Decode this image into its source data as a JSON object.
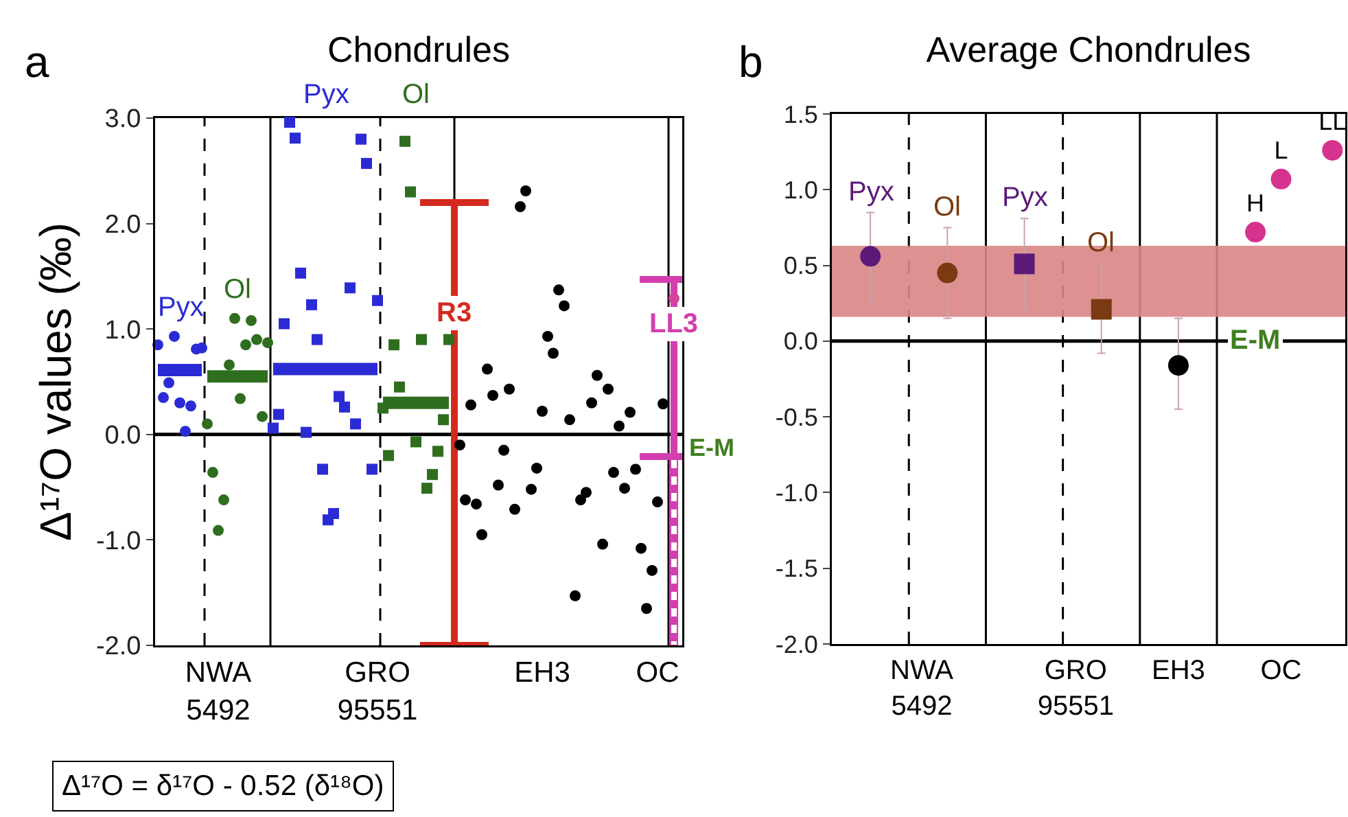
{
  "chart_data": [
    {
      "type": "scatter",
      "title": "Chondrules",
      "ylabel": "Δ¹⁷O values (‰)",
      "annotations": [
        "a",
        "Δ¹⁷O = δ¹⁷O - 0.52 (δ¹⁸O)"
      ],
      "categories": [
        null,
        null,
        null,
        null,
        null,
        null,
        null,
        null,
        null,
        null,
        null,
        "NWA\n5492",
        null,
        null,
        null,
        null,
        null,
        null,
        null,
        null,
        null,
        null,
        null,
        null,
        null,
        null,
        null,
        null,
        null,
        null,
        null,
        null,
        null,
        null,
        null,
        null,
        null,
        null,
        null,
        null,
        "GRO\n95551",
        null,
        null,
        null,
        null,
        null,
        null,
        null,
        null,
        null,
        null,
        null,
        null,
        null,
        null,
        null,
        null,
        null,
        null,
        null,
        null,
        null,
        null,
        null,
        null,
        null,
        null,
        null,
        null,
        null,
        "EH3",
        null,
        null,
        null,
        null,
        null,
        null,
        null,
        null,
        null,
        null,
        null,
        null,
        null,
        null,
        null,
        null,
        null,
        null,
        null,
        null,
        "OC",
        null,
        null,
        null,
        null
      ],
      "ylim": [
        -2.0,
        3.0
      ],
      "yticks": [
        {
          "value": -2,
          "label": "-2.0"
        },
        {
          "value": -1,
          "label": "-1.0"
        },
        {
          "value": 0,
          "label": "0.0"
        },
        {
          "value": 1,
          "label": "1.0"
        },
        {
          "value": 2,
          "label": "2.0"
        },
        {
          "value": 3,
          "label": "3.0"
        }
      ],
      "series": [
        {
          "name": "Pyx",
          "color": "#2b2bd6",
          "marker": "circle",
          "values": [
            0.85,
            0.35,
            0.49,
            0.93,
            0.3,
            0.03,
            0.27,
            0.81,
            0.82,
            null,
            null,
            null,
            null,
            null,
            null,
            null,
            null,
            null,
            null,
            null,
            null,
            null,
            null,
            null,
            null,
            null,
            null,
            null,
            null,
            null,
            null,
            null,
            null,
            null,
            null,
            null,
            null,
            null,
            null,
            null,
            null,
            null,
            null,
            null,
            null,
            null,
            null,
            null,
            null,
            null,
            null,
            null,
            null,
            null,
            null,
            null,
            null,
            null,
            null,
            null,
            null,
            null,
            null,
            null,
            null,
            null,
            null,
            null,
            null,
            null,
            null,
            null,
            null,
            null,
            null,
            null,
            null,
            null,
            null,
            null,
            null,
            null,
            null,
            null,
            null,
            null,
            null,
            null,
            null,
            null,
            null,
            null,
            null,
            null,
            null,
            null
          ]
        },
        {
          "name": "Ol",
          "color": "#2f6e1f",
          "marker": "circle",
          "values": [
            null,
            null,
            null,
            null,
            null,
            null,
            null,
            null,
            null,
            0.1,
            -0.36,
            -0.91,
            -0.62,
            0.66,
            1.1,
            0.34,
            0.85,
            1.08,
            0.9,
            0.17,
            0.87,
            null,
            null,
            null,
            null,
            null,
            null,
            null,
            null,
            null,
            null,
            null,
            null,
            null,
            null,
            null,
            null,
            null,
            null,
            null,
            null,
            null,
            null,
            null,
            null,
            null,
            null,
            null,
            null,
            null,
            null,
            null,
            null,
            null,
            null,
            null,
            null,
            null,
            null,
            null,
            null,
            null,
            null,
            null,
            null,
            null,
            null,
            null,
            null,
            null,
            null,
            null,
            null,
            null,
            null,
            null,
            null,
            null,
            null,
            null,
            null,
            null,
            null,
            null,
            null,
            null,
            null,
            null,
            null,
            null,
            null,
            null,
            null,
            null,
            null,
            null
          ]
        },
        {
          "name": "Pyx",
          "color": "#2b2bd6",
          "marker": "square",
          "values": [
            null,
            null,
            null,
            null,
            null,
            null,
            null,
            null,
            null,
            null,
            null,
            null,
            null,
            null,
            null,
            null,
            null,
            null,
            null,
            null,
            null,
            0.06,
            0.19,
            1.05,
            2.96,
            2.81,
            1.53,
            0.02,
            1.23,
            0.9,
            -0.33,
            -0.81,
            -0.75,
            0.36,
            0.26,
            1.39,
            0.1,
            2.8,
            2.57,
            -0.33,
            1.27,
            null,
            null,
            null,
            null,
            null,
            null,
            null,
            null,
            null,
            null,
            null,
            null,
            null,
            null,
            null,
            null,
            null,
            null,
            null,
            null,
            null,
            null,
            null,
            null,
            null,
            null,
            null,
            null,
            null,
            null,
            null,
            null,
            null,
            null,
            null,
            null,
            null,
            null,
            null,
            null,
            null,
            null,
            null,
            null,
            null,
            null,
            null,
            null,
            null,
            null,
            null,
            null,
            null,
            null,
            null
          ]
        },
        {
          "name": "Ol",
          "color": "#2f6e1f",
          "marker": "square",
          "values": [
            null,
            null,
            null,
            null,
            null,
            null,
            null,
            null,
            null,
            null,
            null,
            null,
            null,
            null,
            null,
            null,
            null,
            null,
            null,
            null,
            null,
            null,
            null,
            null,
            null,
            null,
            null,
            null,
            null,
            null,
            null,
            null,
            null,
            null,
            null,
            null,
            null,
            null,
            null,
            null,
            null,
            0.25,
            -0.2,
            0.85,
            0.45,
            2.78,
            2.3,
            -0.07,
            0.9,
            -0.51,
            -0.38,
            -0.16,
            0.14,
            0.9,
            null,
            null,
            null,
            null,
            null,
            null,
            null,
            null,
            null,
            null,
            null,
            null,
            null,
            null,
            null,
            null,
            null,
            null,
            null,
            null,
            null,
            null,
            null,
            null,
            null,
            null,
            null,
            null,
            null,
            null,
            null,
            null,
            null,
            null,
            null,
            null,
            null,
            null,
            null,
            null,
            null,
            null
          ]
        },
        {
          "color": "#000000",
          "marker": "circle",
          "values": [
            null,
            null,
            null,
            null,
            null,
            null,
            null,
            null,
            null,
            null,
            null,
            null,
            null,
            null,
            null,
            null,
            null,
            null,
            null,
            null,
            null,
            null,
            null,
            null,
            null,
            null,
            null,
            null,
            null,
            null,
            null,
            null,
            null,
            null,
            null,
            null,
            null,
            null,
            null,
            null,
            null,
            null,
            null,
            null,
            null,
            null,
            null,
            null,
            null,
            null,
            null,
            null,
            null,
            null,
            null,
            -0.1,
            -0.62,
            0.28,
            -0.66,
            -0.95,
            0.62,
            0.37,
            -0.48,
            -0.15,
            0.43,
            -0.71,
            2.16,
            2.31,
            -0.52,
            -0.32,
            0.22,
            0.93,
            0.77,
            1.37,
            1.22,
            0.14,
            -1.53,
            -0.62,
            -0.55,
            0.3,
            0.56,
            -1.04,
            0.43,
            -0.36,
            0.08,
            -0.51,
            0.21,
            -0.33,
            -1.08,
            -1.65,
            -1.29,
            -0.64,
            0.29,
            null,
            null,
            null
          ]
        },
        {
          "color": "#d4449f",
          "marker": "circle",
          "values": [
            null,
            null,
            null,
            null,
            null,
            null,
            null,
            null,
            null,
            null,
            null,
            null,
            null,
            null,
            null,
            null,
            null,
            null,
            null,
            null,
            null,
            null,
            null,
            null,
            null,
            null,
            null,
            null,
            null,
            null,
            null,
            null,
            null,
            null,
            null,
            null,
            null,
            null,
            null,
            null,
            null,
            null,
            null,
            null,
            null,
            null,
            null,
            null,
            null,
            null,
            null,
            null,
            null,
            null,
            null,
            null,
            null,
            null,
            null,
            null,
            null,
            null,
            null,
            null,
            null,
            null,
            null,
            null,
            null,
            null,
            null,
            null,
            null,
            null,
            null,
            null,
            null,
            null,
            null,
            null,
            null,
            null,
            null,
            null,
            null,
            null,
            null,
            null,
            null,
            null,
            null,
            null,
            null,
            null,
            1.29,
            null
          ]
        },
        {
          "type": "line",
          "color": "#2b2bd6",
          "line_style": "solid",
          "values": [
            0.61,
            0.61,
            0.61,
            0.61,
            0.61,
            0.61,
            0.61,
            0.61,
            0.61,
            null,
            null,
            null,
            null,
            null,
            null,
            null,
            null,
            null,
            null,
            null,
            null,
            null,
            null,
            null,
            null,
            null,
            null,
            null,
            null,
            null,
            null,
            null,
            null,
            null,
            null,
            null,
            null,
            null,
            null,
            null,
            null,
            null,
            null,
            null,
            null,
            null,
            null,
            null,
            null,
            null,
            null,
            null,
            null,
            null,
            null,
            null,
            null,
            null,
            null,
            null,
            null,
            null,
            null,
            null,
            null,
            null,
            null,
            null,
            null,
            null,
            null,
            null,
            null,
            null,
            null,
            null,
            null,
            null,
            null,
            null,
            null,
            null,
            null,
            null,
            null,
            null,
            null,
            null,
            null,
            null,
            null,
            null,
            null,
            null,
            null,
            null
          ]
        },
        {
          "type": "line",
          "color": "#2f6e1f",
          "line_style": "solid",
          "values": [
            null,
            null,
            null,
            null,
            null,
            null,
            null,
            null,
            null,
            0.55,
            0.55,
            0.55,
            0.55,
            0.55,
            0.55,
            0.55,
            0.55,
            0.55,
            0.55,
            0.55,
            0.55,
            null,
            null,
            null,
            null,
            null,
            null,
            null,
            null,
            null,
            null,
            null,
            null,
            null,
            null,
            null,
            null,
            null,
            null,
            null,
            null,
            null,
            null,
            null,
            null,
            null,
            null,
            null,
            null,
            null,
            null,
            null,
            null,
            null,
            null,
            null,
            null,
            null,
            null,
            null,
            null,
            null,
            null,
            null,
            null,
            null,
            null,
            null,
            null,
            null,
            null,
            null,
            null,
            null,
            null,
            null,
            null,
            null,
            null,
            null,
            null,
            null,
            null,
            null,
            null,
            null,
            null,
            null,
            null,
            null,
            null,
            null,
            null,
            null,
            null,
            null
          ]
        },
        {
          "type": "line",
          "color": "#2b2bd6",
          "line_style": "solid",
          "values": [
            null,
            null,
            null,
            null,
            null,
            null,
            null,
            null,
            null,
            null,
            null,
            null,
            null,
            null,
            null,
            null,
            null,
            null,
            null,
            null,
            null,
            0.62,
            0.62,
            0.62,
            0.62,
            0.62,
            0.62,
            0.62,
            0.62,
            0.62,
            0.62,
            0.62,
            0.62,
            0.62,
            0.62,
            0.62,
            0.62,
            0.62,
            0.62,
            0.62,
            0.62,
            null,
            null,
            null,
            null,
            null,
            null,
            null,
            null,
            null,
            null,
            null,
            null,
            null,
            null,
            null,
            null,
            null,
            null,
            null,
            null,
            null,
            null,
            null,
            null,
            null,
            null,
            null,
            null,
            null,
            null,
            null,
            null,
            null,
            null,
            null,
            null,
            null,
            null,
            null,
            null,
            null,
            null,
            null,
            null,
            null,
            null,
            null,
            null,
            null,
            null,
            null,
            null,
            null,
            null,
            null
          ]
        },
        {
          "type": "line",
          "color": "#2f6e1f",
          "line_style": "solid",
          "values": [
            null,
            null,
            null,
            null,
            null,
            null,
            null,
            null,
            null,
            null,
            null,
            null,
            null,
            null,
            null,
            null,
            null,
            null,
            null,
            null,
            null,
            null,
            null,
            null,
            null,
            null,
            null,
            null,
            null,
            null,
            null,
            null,
            null,
            null,
            null,
            null,
            null,
            null,
            null,
            null,
            null,
            0.3,
            0.3,
            0.3,
            0.3,
            0.3,
            0.3,
            0.3,
            0.3,
            0.3,
            0.3,
            0.3,
            0.3,
            0.3,
            null,
            null,
            null,
            null,
            null,
            null,
            null,
            null,
            null,
            null,
            null,
            null,
            null,
            null,
            null,
            null,
            null,
            null,
            null,
            null,
            null,
            null,
            null,
            null,
            null,
            null,
            null,
            null,
            null,
            null,
            null,
            null,
            null,
            null,
            null,
            null,
            null,
            null,
            null,
            null,
            null,
            null
          ]
        },
        {
          "type": "bar",
          "name": "R3",
          "color": "#d42a1e",
          "line_style": "solid",
          "values": [
            null,
            null,
            null,
            null,
            null,
            null,
            null,
            null,
            null,
            null,
            null,
            null,
            null,
            null,
            null,
            null,
            null,
            null,
            null,
            null,
            null,
            null,
            null,
            null,
            null,
            null,
            null,
            null,
            null,
            null,
            null,
            null,
            null,
            null,
            null,
            null,
            null,
            null,
            null,
            null,
            null,
            null,
            null,
            null,
            null,
            null,
            null,
            null,
            null,
            null,
            null,
            null,
            null,
            null,
            4.2,
            null,
            null,
            null,
            null,
            null,
            null,
            null,
            null,
            null,
            null,
            null,
            null,
            null,
            null,
            null,
            null,
            null,
            null,
            null,
            null,
            null,
            null,
            null,
            null,
            null,
            null,
            null,
            null,
            null,
            null,
            null,
            null,
            null,
            null,
            null,
            null,
            null,
            null,
            null,
            null,
            null
          ],
          "base": [
            null,
            null,
            null,
            null,
            null,
            null,
            null,
            null,
            null,
            null,
            null,
            null,
            null,
            null,
            null,
            null,
            null,
            null,
            null,
            null,
            null,
            null,
            null,
            null,
            null,
            null,
            null,
            null,
            null,
            null,
            null,
            null,
            null,
            null,
            null,
            null,
            null,
            null,
            null,
            null,
            null,
            null,
            null,
            null,
            null,
            null,
            null,
            null,
            null,
            null,
            null,
            null,
            null,
            null,
            -2.0,
            null,
            null,
            null,
            null,
            null,
            null,
            null,
            null,
            null,
            null,
            null,
            null,
            null,
            null,
            null,
            null,
            null,
            null,
            null,
            null,
            null,
            null,
            null,
            null,
            null,
            null,
            null,
            null,
            null,
            null,
            null,
            null,
            null,
            null,
            null,
            null,
            null,
            null,
            null,
            null,
            null
          ]
        },
        {
          "type": "bar",
          "name": "LL3",
          "color": "#d33fae",
          "line_style": "solid",
          "values": [
            null,
            null,
            null,
            null,
            null,
            null,
            null,
            null,
            null,
            null,
            null,
            null,
            null,
            null,
            null,
            null,
            null,
            null,
            null,
            null,
            null,
            null,
            null,
            null,
            null,
            null,
            null,
            null,
            null,
            null,
            null,
            null,
            null,
            null,
            null,
            null,
            null,
            null,
            null,
            null,
            null,
            null,
            null,
            null,
            null,
            null,
            null,
            null,
            null,
            null,
            null,
            null,
            null,
            null,
            null,
            null,
            null,
            null,
            null,
            null,
            null,
            null,
            null,
            null,
            null,
            null,
            null,
            null,
            null,
            null,
            null,
            null,
            null,
            null,
            null,
            null,
            null,
            null,
            null,
            null,
            null,
            null,
            null,
            null,
            null,
            null,
            null,
            null,
            null,
            null,
            null,
            null,
            null,
            null,
            1.68,
            null
          ],
          "base": [
            null,
            null,
            null,
            null,
            null,
            null,
            null,
            null,
            null,
            null,
            null,
            null,
            null,
            null,
            null,
            null,
            null,
            null,
            null,
            null,
            null,
            null,
            null,
            null,
            null,
            null,
            null,
            null,
            null,
            null,
            null,
            null,
            null,
            null,
            null,
            null,
            null,
            null,
            null,
            null,
            null,
            null,
            null,
            null,
            null,
            null,
            null,
            null,
            null,
            null,
            null,
            null,
            null,
            null,
            null,
            null,
            null,
            null,
            null,
            null,
            null,
            null,
            null,
            null,
            null,
            null,
            null,
            null,
            null,
            null,
            null,
            null,
            null,
            null,
            null,
            null,
            null,
            null,
            null,
            null,
            null,
            null,
            null,
            null,
            null,
            null,
            null,
            null,
            null,
            null,
            null,
            null,
            null,
            null,
            -0.21,
            null
          ]
        },
        {
          "type": "bar",
          "color": "#d33fae",
          "line_style": "dashed",
          "values": [
            null,
            null,
            null,
            null,
            null,
            null,
            null,
            null,
            null,
            null,
            null,
            null,
            null,
            null,
            null,
            null,
            null,
            null,
            null,
            null,
            null,
            null,
            null,
            null,
            null,
            null,
            null,
            null,
            null,
            null,
            null,
            null,
            null,
            null,
            null,
            null,
            null,
            null,
            null,
            null,
            null,
            null,
            null,
            null,
            null,
            null,
            null,
            null,
            null,
            null,
            null,
            null,
            null,
            null,
            null,
            null,
            null,
            null,
            null,
            null,
            null,
            null,
            null,
            null,
            null,
            null,
            null,
            null,
            null,
            null,
            null,
            null,
            null,
            null,
            null,
            null,
            null,
            null,
            null,
            null,
            null,
            null,
            null,
            null,
            null,
            null,
            null,
            null,
            null,
            null,
            null,
            null,
            null,
            null,
            1.79,
            null
          ],
          "base": [
            null,
            null,
            null,
            null,
            null,
            null,
            null,
            null,
            null,
            null,
            null,
            null,
            null,
            null,
            null,
            null,
            null,
            null,
            null,
            null,
            null,
            null,
            null,
            null,
            null,
            null,
            null,
            null,
            null,
            null,
            null,
            null,
            null,
            null,
            null,
            null,
            null,
            null,
            null,
            null,
            null,
            null,
            null,
            null,
            null,
            null,
            null,
            null,
            null,
            null,
            null,
            null,
            null,
            null,
            null,
            null,
            null,
            null,
            null,
            null,
            null,
            null,
            null,
            null,
            null,
            null,
            null,
            null,
            null,
            null,
            null,
            null,
            null,
            null,
            null,
            null,
            null,
            null,
            null,
            null,
            null,
            null,
            null,
            null,
            null,
            null,
            null,
            null,
            null,
            null,
            null,
            null,
            null,
            null,
            -2.0,
            null
          ]
        }
      ],
      "ref_lines": [
        {
          "axis": "y",
          "value": 0,
          "label": "E-M",
          "color": "#000000"
        }
      ]
    },
    {
      "type": "scatter",
      "title": "Average Chondrules",
      "annotations": [
        "b"
      ],
      "categories": [
        null,
        null,
        null,
        "NWA\n5492",
        null,
        null,
        null,
        null,
        null,
        "GRO\n95551",
        null,
        null,
        null,
        "EH3",
        null,
        null,
        null,
        "OC",
        null,
        null
      ],
      "ylim": [
        -2.0,
        1.5
      ],
      "yticks": [
        {
          "value": -2,
          "label": "-2.0"
        },
        {
          "value": -1.5,
          "label": "-1.5"
        },
        {
          "value": -1,
          "label": "-1.0"
        },
        {
          "value": -0.5,
          "label": "-0.5"
        },
        {
          "value": 0,
          "label": "0.0"
        },
        {
          "value": 0.5,
          "label": "0.5"
        },
        {
          "value": 1,
          "label": "1.0"
        },
        1.5
      ],
      "series": [
        {
          "name": "Pyx",
          "color": "#5b1a78",
          "marker": "circle",
          "values": [
            null,
            0.56,
            null,
            null,
            null,
            null,
            null,
            null,
            null,
            null,
            null,
            null,
            null,
            null,
            null,
            null,
            null,
            null,
            null,
            null
          ],
          "errors": [
            null,
            [
              0.26,
              0.85
            ],
            null,
            null,
            null,
            null,
            null,
            null,
            null,
            null,
            null,
            null,
            null,
            null,
            null,
            null,
            null,
            null,
            null,
            null
          ]
        },
        {
          "name": "Ol",
          "color": "#7b3b12",
          "marker": "circle",
          "values": [
            null,
            null,
            null,
            null,
            0.45,
            null,
            null,
            null,
            null,
            null,
            null,
            null,
            null,
            null,
            null,
            null,
            null,
            null,
            null,
            null
          ],
          "errors": [
            null,
            null,
            null,
            null,
            [
              0.15,
              0.75
            ],
            null,
            null,
            null,
            null,
            null,
            null,
            null,
            null,
            null,
            null,
            null,
            null,
            null,
            null,
            null
          ]
        },
        {
          "name": "Pyx",
          "color": "#5b1a78",
          "marker": "square",
          "values": [
            null,
            null,
            null,
            null,
            null,
            null,
            null,
            0.51,
            null,
            null,
            null,
            null,
            null,
            null,
            null,
            null,
            null,
            null,
            null,
            null
          ],
          "errors": [
            null,
            null,
            null,
            null,
            null,
            null,
            null,
            [
              0.22,
              0.81
            ],
            null,
            null,
            null,
            null,
            null,
            null,
            null,
            null,
            null,
            null,
            null,
            null
          ]
        },
        {
          "name": "Ol",
          "color": "#7b3b12",
          "marker": "square",
          "values": [
            null,
            null,
            null,
            null,
            null,
            null,
            null,
            null,
            null,
            null,
            0.21,
            null,
            null,
            null,
            null,
            null,
            null,
            null,
            null,
            null
          ],
          "errors": [
            null,
            null,
            null,
            null,
            null,
            null,
            null,
            null,
            null,
            null,
            [
              -0.08,
              0.51
            ],
            null,
            null,
            null,
            null,
            null,
            null,
            null,
            null,
            null
          ]
        },
        {
          "color": "#000000",
          "marker": "circle",
          "values": [
            null,
            null,
            null,
            null,
            null,
            null,
            null,
            null,
            null,
            null,
            null,
            null,
            null,
            -0.16,
            null,
            null,
            null,
            null,
            null,
            null
          ],
          "errors": [
            null,
            null,
            null,
            null,
            null,
            null,
            null,
            null,
            null,
            null,
            null,
            null,
            null,
            [
              -0.45,
              0.15
            ],
            null,
            null,
            null,
            null,
            null,
            null
          ]
        },
        {
          "color": "#d6338f",
          "marker": "circle",
          "values": [
            null,
            null,
            null,
            null,
            null,
            null,
            null,
            null,
            null,
            null,
            null,
            null,
            null,
            null,
            null,
            null,
            0.72,
            1.07,
            null,
            1.26
          ],
          "value_labels": [
            null,
            null,
            null,
            null,
            null,
            null,
            null,
            null,
            null,
            null,
            null,
            null,
            null,
            null,
            null,
            null,
            "H",
            "L",
            null,
            "LL"
          ]
        }
      ],
      "bands": [
        {
          "axis": "y",
          "from": 0.16,
          "to": 0.63,
          "color": "#d98585"
        }
      ],
      "ref_lines": [
        {
          "axis": "y",
          "value": 0,
          "label": "E-M",
          "color": "#000000"
        }
      ]
    }
  ]
}
